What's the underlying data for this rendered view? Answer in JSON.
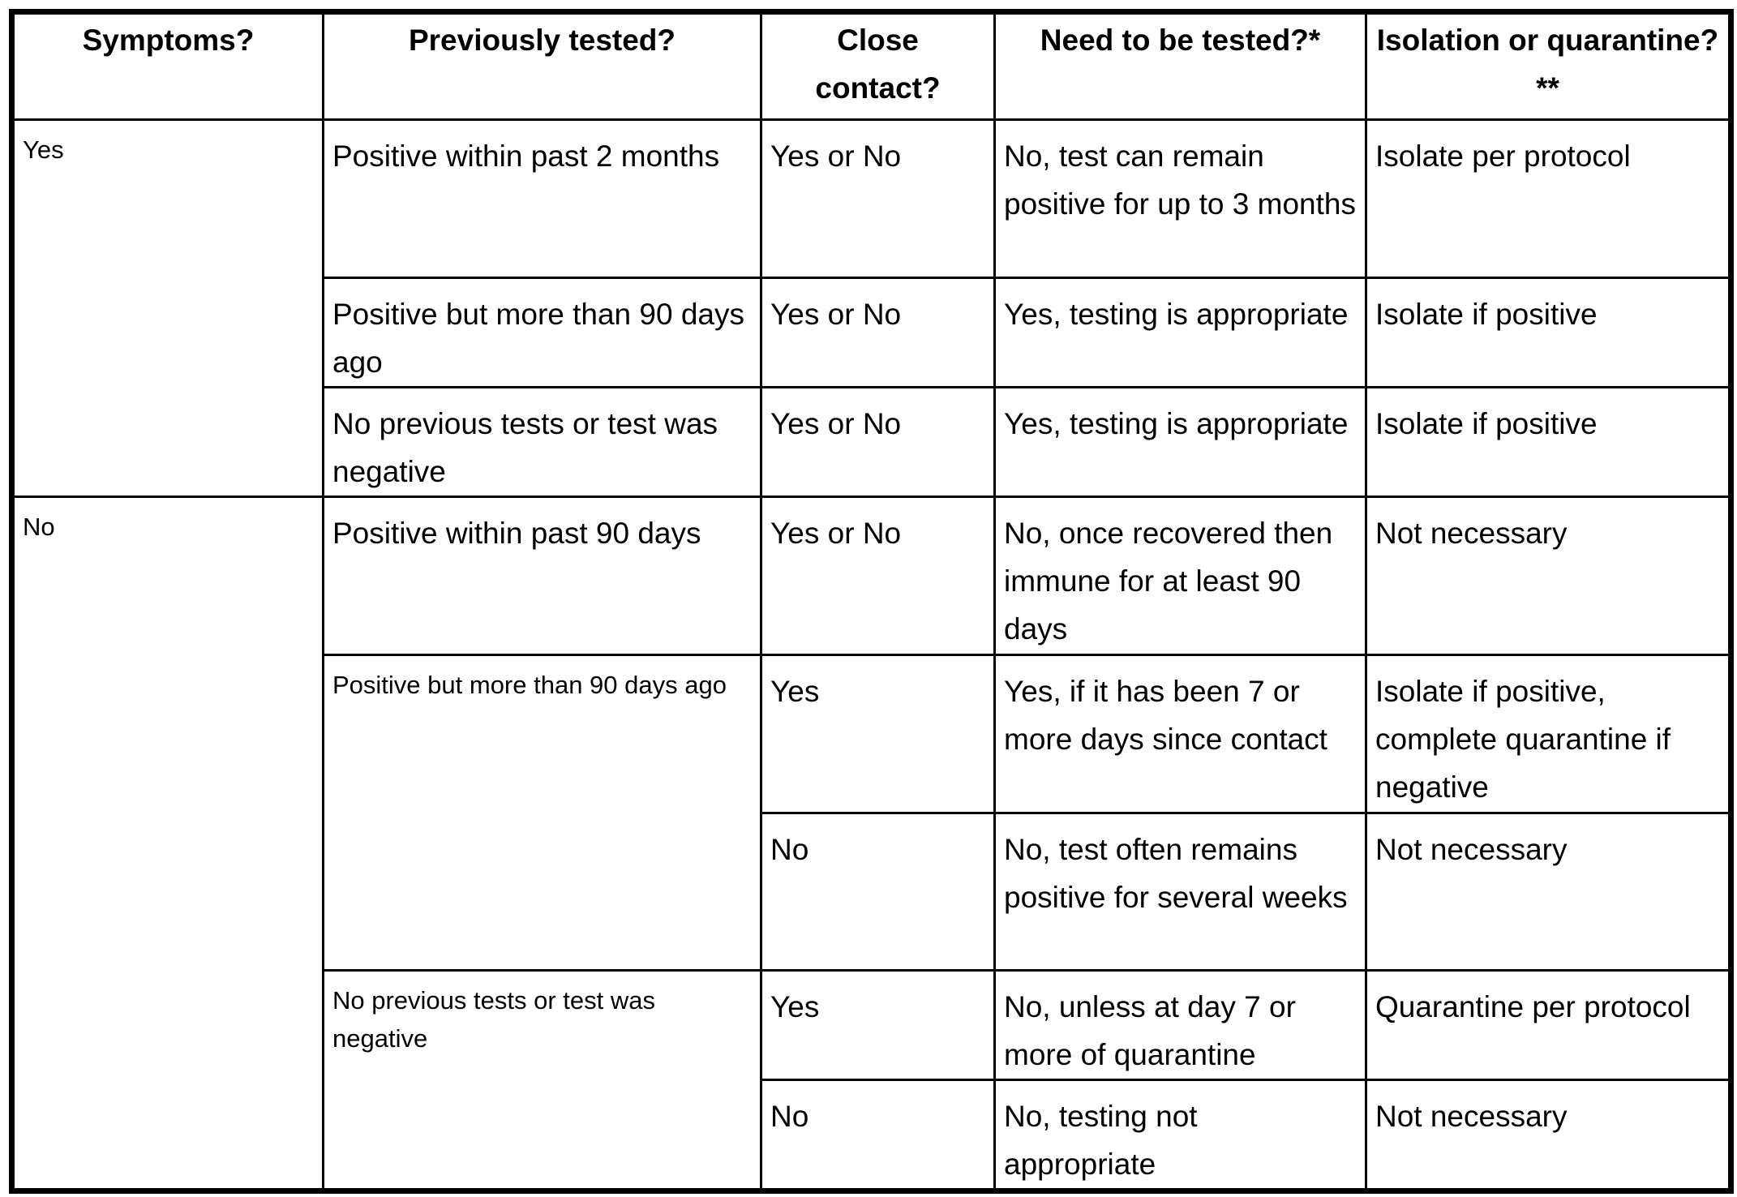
{
  "table": {
    "header": [
      "Symptoms?",
      "Previously tested?",
      "Close contact?",
      "Need to be tested?*",
      "Isolation or quarantine?**"
    ],
    "rows": [
      [
        "Yes",
        "Positive within past 2 months",
        "Yes or No",
        "No, test can remain positive for up to 3 months",
        "Isolate per protocol"
      ],
      [
        "Positive but more than 90 days ago",
        "Yes or No",
        "Yes, testing is appropriate",
        "Isolate if positive"
      ],
      [
        "No previous tests or test was negative",
        "Yes or No",
        "Yes, testing is appropriate",
        "Isolate if positive"
      ],
      [
        "No",
        "Positive within past 90 days",
        "Yes or No",
        "No, once recovered then immune for at least 90 days",
        "Not necessary"
      ],
      [
        "Positive but more than 90 days ago",
        "Yes",
        "Yes, if it has been 7 or more days since contact",
        "Isolate if positive, complete quarantine if negative"
      ],
      [
        "No",
        "No, test often remains positive for several weeks",
        "Not necessary"
      ],
      [
        "No previous tests or test was negative",
        "Yes",
        "No, unless at day 7 or more of quarantine",
        "Quarantine per protocol"
      ],
      [
        "No",
        "No, testing not appropriate",
        "Not necessary"
      ]
    ]
  }
}
